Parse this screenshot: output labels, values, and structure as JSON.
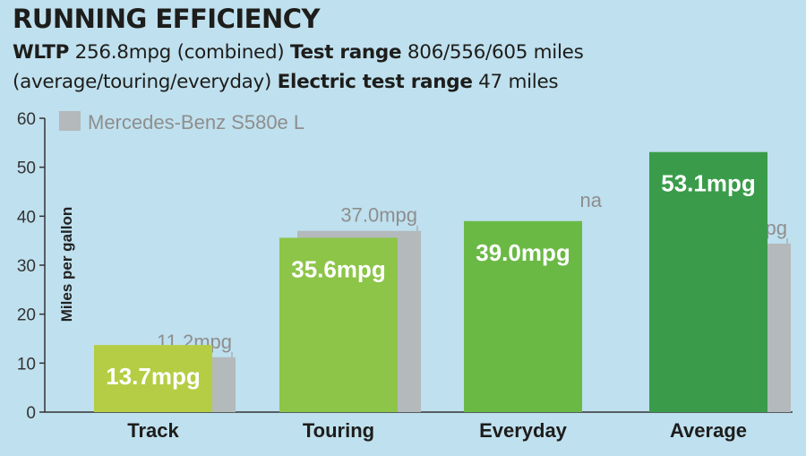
{
  "header": {
    "title": "RUNNING EFFICIENCY",
    "wltp_label": "WLTP",
    "wltp_value": "256.8mpg (combined)",
    "range_label": "Test range",
    "range_value": "806/556/605 miles",
    "range_note": "(average/touring/everyday)",
    "electric_label": "Electric test range",
    "electric_value": "47 miles"
  },
  "colors": {
    "background": "#bfe0ee",
    "track": "#b5cd44",
    "touring": "#8cc548",
    "everyday": "#6ab945",
    "average": "#3a9c4a",
    "competitor": "#b4b9bc"
  },
  "chart_data": {
    "type": "bar",
    "ylabel": "Miles per gallon",
    "ylim": [
      0,
      60
    ],
    "yticks": [
      "0",
      "10",
      "20",
      "30",
      "40",
      "50",
      "60"
    ],
    "legend": {
      "label": "Mercedes-Benz S580e L",
      "position": "top-left"
    },
    "categories": [
      "Track",
      "Touring",
      "Everyday",
      "Average"
    ],
    "series": [
      {
        "values": [
          13.7,
          35.6,
          39.0,
          53.1
        ],
        "labels": [
          "13.7mpg",
          "35.6mpg",
          "39.0mpg",
          "53.1mpg"
        ]
      },
      {
        "name": "Mercedes-Benz S580e L",
        "values": [
          11.2,
          37.0,
          null,
          34.4
        ],
        "labels": [
          "11.2mpg",
          "37.0mpg",
          "na",
          "34.4mpg"
        ]
      }
    ]
  }
}
